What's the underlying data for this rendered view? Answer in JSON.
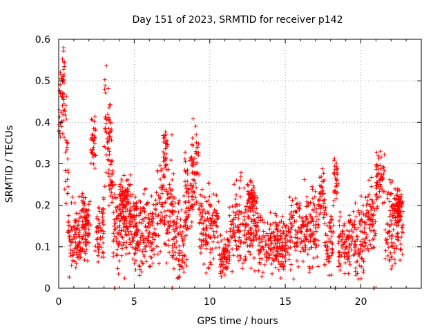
{
  "chart_data": {
    "type": "scatter",
    "title": "Day 151 of 2023, SRMTID for receiver p142",
    "xlabel": "GPS time / hours",
    "ylabel": "SRMTID / TECUs",
    "xlim": [
      0,
      24
    ],
    "ylim": [
      0,
      0.6
    ],
    "xticks": [
      0,
      5,
      10,
      15,
      20
    ],
    "xtick_labels": [
      "0",
      "5",
      "10",
      "15",
      "20"
    ],
    "yticks": [
      0,
      0.1,
      0.2,
      0.3,
      0.4,
      0.5,
      0.6
    ],
    "ytick_labels": [
      "0",
      "0.1",
      "0.2",
      "0.3",
      "0.4",
      "0.5",
      "0.6"
    ],
    "grid": true,
    "marker": "plus",
    "color": "#ff0000",
    "series": [
      {
        "name": "SRMTID",
        "clusters": [
          {
            "start": 0.0,
            "end": 0.4,
            "mean": 0.44,
            "spread": 0.045
          },
          {
            "start": 0.25,
            "end": 0.4,
            "mean": 0.53,
            "spread": 0.025
          },
          {
            "start": 0.4,
            "end": 0.65,
            "mean": 0.3,
            "spread": 0.07
          },
          {
            "start": 0.6,
            "end": 2.0,
            "mean": 0.125,
            "spread": 0.035
          },
          {
            "start": 1.5,
            "end": 2.1,
            "mean": 0.17,
            "spread": 0.025
          },
          {
            "start": 2.1,
            "end": 2.45,
            "mean": 0.35,
            "spread": 0.03
          },
          {
            "start": 2.4,
            "end": 3.0,
            "mean": 0.14,
            "spread": 0.04
          },
          {
            "start": 3.0,
            "end": 3.5,
            "mean": 0.4,
            "spread": 0.06
          },
          {
            "start": 3.3,
            "end": 3.6,
            "mean": 0.27,
            "spread": 0.05
          },
          {
            "start": 3.6,
            "end": 5.2,
            "mean": 0.15,
            "spread": 0.045
          },
          {
            "start": 4.0,
            "end": 4.8,
            "mean": 0.22,
            "spread": 0.025
          },
          {
            "start": 5.0,
            "end": 6.5,
            "mean": 0.14,
            "spread": 0.05
          },
          {
            "start": 6.5,
            "end": 7.6,
            "mean": 0.19,
            "spread": 0.06
          },
          {
            "start": 6.9,
            "end": 7.2,
            "mean": 0.33,
            "spread": 0.03
          },
          {
            "start": 7.5,
            "end": 8.5,
            "mean": 0.12,
            "spread": 0.05
          },
          {
            "start": 8.3,
            "end": 8.9,
            "mean": 0.23,
            "spread": 0.05
          },
          {
            "start": 8.8,
            "end": 9.3,
            "mean": 0.28,
            "spread": 0.06
          },
          {
            "start": 9.3,
            "end": 10.6,
            "mean": 0.15,
            "spread": 0.045
          },
          {
            "start": 10.6,
            "end": 11.3,
            "mean": 0.08,
            "spread": 0.03
          },
          {
            "start": 11.3,
            "end": 13.2,
            "mean": 0.15,
            "spread": 0.045
          },
          {
            "start": 12.5,
            "end": 13.0,
            "mean": 0.22,
            "spread": 0.02
          },
          {
            "start": 13.2,
            "end": 15.3,
            "mean": 0.11,
            "spread": 0.035
          },
          {
            "start": 15.3,
            "end": 17.2,
            "mean": 0.14,
            "spread": 0.045
          },
          {
            "start": 17.2,
            "end": 17.6,
            "mean": 0.22,
            "spread": 0.03
          },
          {
            "start": 17.6,
            "end": 18.2,
            "mean": 0.12,
            "spread": 0.04
          },
          {
            "start": 18.2,
            "end": 18.5,
            "mean": 0.26,
            "spread": 0.03
          },
          {
            "start": 18.5,
            "end": 19.5,
            "mean": 0.11,
            "spread": 0.035
          },
          {
            "start": 19.5,
            "end": 20.3,
            "mean": 0.12,
            "spread": 0.045
          },
          {
            "start": 20.3,
            "end": 21.0,
            "mean": 0.17,
            "spread": 0.045
          },
          {
            "start": 21.0,
            "end": 21.6,
            "mean": 0.26,
            "spread": 0.04
          },
          {
            "start": 21.6,
            "end": 22.8,
            "mean": 0.15,
            "spread": 0.045
          },
          {
            "start": 22.2,
            "end": 22.8,
            "mean": 0.2,
            "spread": 0.02
          }
        ],
        "zero_points_x": [
          3.7,
          7.5,
          18.3,
          20.85
        ]
      }
    ]
  }
}
